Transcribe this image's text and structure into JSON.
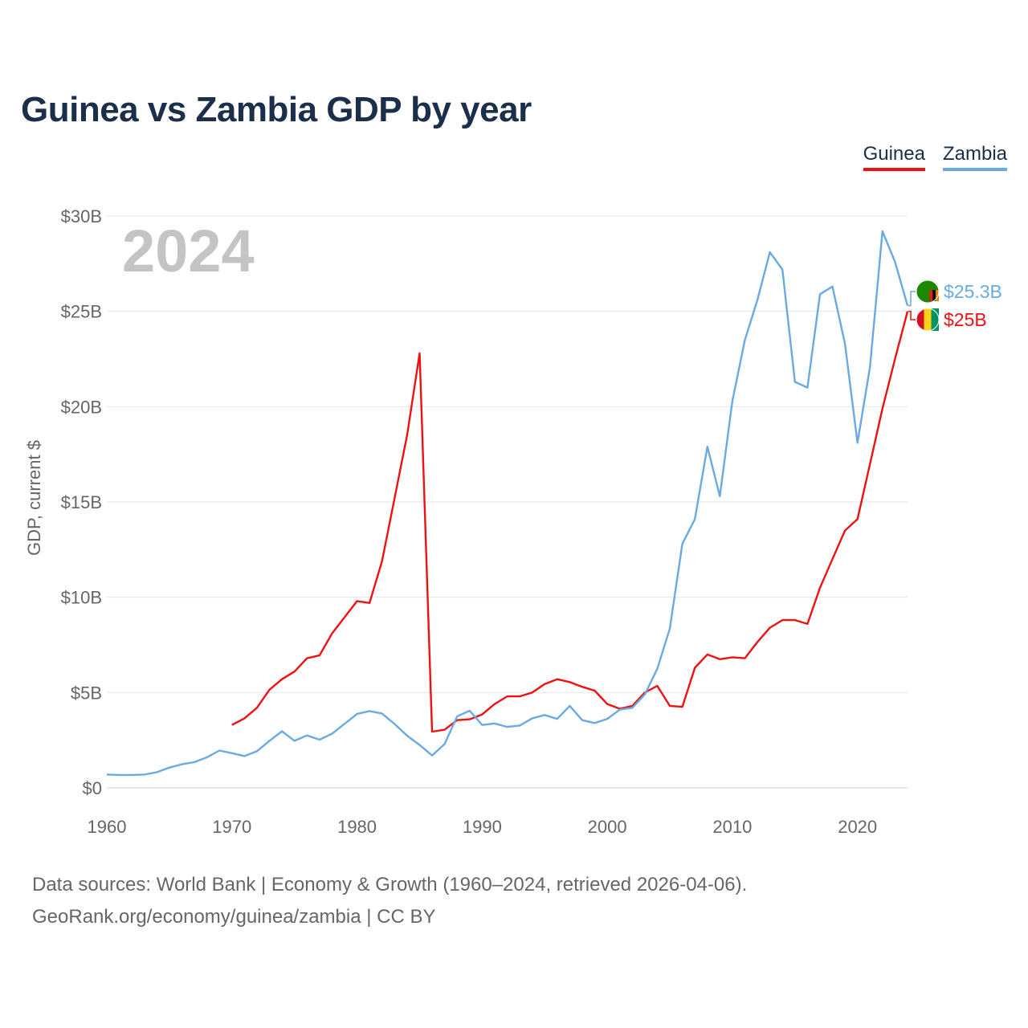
{
  "chart_data": {
    "type": "line",
    "title": "Guinea vs Zambia GDP by year",
    "year_watermark": "2024",
    "ylabel": "GDP, current $",
    "xlabel": "",
    "xlim": [
      1960,
      2024
    ],
    "ylim": [
      0,
      30
    ],
    "y_unit": "billions USD",
    "x_ticks": [
      1960,
      1970,
      1980,
      1990,
      2000,
      2010,
      2020
    ],
    "y_ticks": [
      {
        "value": 0,
        "label": "$0"
      },
      {
        "value": 5,
        "label": "$5B"
      },
      {
        "value": 10,
        "label": "$10B"
      },
      {
        "value": 15,
        "label": "$15B"
      },
      {
        "value": 20,
        "label": "$20B"
      },
      {
        "value": 25,
        "label": "$25B"
      },
      {
        "value": 30,
        "label": "$30B"
      }
    ],
    "grid": true,
    "legend_position": "top-right",
    "series": [
      {
        "name": "Guinea",
        "color": "#ee1111",
        "end_label": "$25B",
        "x": [
          1970,
          1971,
          1972,
          1973,
          1974,
          1975,
          1976,
          1977,
          1978,
          1979,
          1980,
          1981,
          1982,
          1983,
          1984,
          1985,
          1986,
          1987,
          1988,
          1989,
          1990,
          1991,
          1992,
          1993,
          1994,
          1995,
          1996,
          1997,
          1998,
          1999,
          2000,
          2001,
          2002,
          2003,
          2004,
          2005,
          2006,
          2007,
          2008,
          2009,
          2010,
          2011,
          2012,
          2013,
          2014,
          2015,
          2016,
          2017,
          2018,
          2019,
          2020,
          2021,
          2022,
          2023,
          2024
        ],
        "values": [
          3.3,
          3.65,
          4.2,
          5.15,
          5.7,
          6.1,
          6.8,
          6.95,
          8.1,
          8.95,
          9.8,
          9.7,
          11.9,
          15.2,
          18.5,
          22.8,
          2.95,
          3.05,
          3.55,
          3.6,
          3.85,
          4.4,
          4.8,
          4.8,
          5.0,
          5.45,
          5.7,
          5.55,
          5.3,
          5.1,
          4.4,
          4.15,
          4.3,
          5.0,
          5.35,
          4.3,
          4.25,
          6.3,
          7.0,
          6.75,
          6.85,
          6.8,
          7.65,
          8.4,
          8.8,
          8.8,
          8.6,
          10.5,
          12.0,
          13.5,
          14.1,
          17.0,
          19.9,
          22.5,
          25.0
        ]
      },
      {
        "name": "Zambia",
        "color": "#6aaae4",
        "end_label": "$25.3B",
        "x": [
          1960,
          1961,
          1962,
          1963,
          1964,
          1965,
          1966,
          1967,
          1968,
          1969,
          1970,
          1971,
          1972,
          1973,
          1974,
          1975,
          1976,
          1977,
          1978,
          1979,
          1980,
          1981,
          1982,
          1983,
          1984,
          1985,
          1986,
          1987,
          1988,
          1989,
          1990,
          1991,
          1992,
          1993,
          1994,
          1995,
          1996,
          1997,
          1998,
          1999,
          2000,
          2001,
          2002,
          2003,
          2004,
          2005,
          2006,
          2007,
          2008,
          2009,
          2010,
          2011,
          2012,
          2013,
          2014,
          2015,
          2016,
          2017,
          2018,
          2019,
          2020,
          2021,
          2022,
          2023,
          2024
        ],
        "values": [
          0.7,
          0.68,
          0.68,
          0.7,
          0.82,
          1.06,
          1.24,
          1.35,
          1.6,
          1.96,
          1.82,
          1.67,
          1.92,
          2.47,
          2.97,
          2.47,
          2.75,
          2.53,
          2.84,
          3.36,
          3.88,
          4.03,
          3.9,
          3.35,
          2.74,
          2.25,
          1.7,
          2.3,
          3.75,
          4.05,
          3.3,
          3.38,
          3.2,
          3.27,
          3.65,
          3.82,
          3.62,
          4.3,
          3.55,
          3.4,
          3.62,
          4.1,
          4.2,
          4.9,
          6.25,
          8.35,
          12.8,
          14.1,
          17.9,
          15.3,
          20.3,
          23.5,
          25.6,
          28.1,
          27.2,
          21.3,
          21.0,
          25.9,
          26.3,
          23.3,
          18.1,
          22.1,
          29.2,
          27.6,
          25.3
        ]
      }
    ]
  },
  "legend": {
    "items": [
      {
        "label": "Guinea",
        "color": "#ee1111"
      },
      {
        "label": "Zambia",
        "color": "#6aaae4"
      }
    ]
  },
  "footer": {
    "line1": "Data sources: World Bank | Economy & Growth (1960–2024, retrieved 2026-04-06).",
    "line2": "GeoRank.org/economy/guinea/zambia | CC BY"
  }
}
